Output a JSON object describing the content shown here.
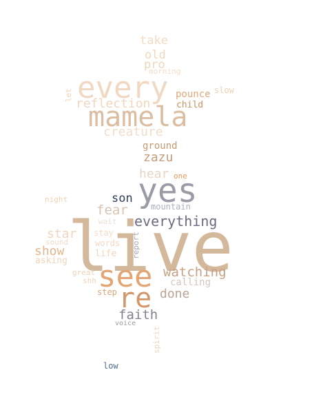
{
  "words": [
    {
      "text": "live",
      "color": "#d4b89c",
      "rotate": 0
    },
    {
      "text": "yes",
      "color": "#9a9ba6",
      "rotate": 0
    },
    {
      "text": "every",
      "color": "#f0d8c2",
      "rotate": 0
    },
    {
      "text": "mamela",
      "color": "#dbbda2",
      "rotate": 0
    },
    {
      "text": "see",
      "color": "#e3a574",
      "rotate": 0
    },
    {
      "text": "re",
      "color": "#d3976a",
      "rotate": 0
    },
    {
      "text": "everything",
      "color": "#6b6a80",
      "rotate": 0
    },
    {
      "text": "watching",
      "color": "#c7a184",
      "rotate": 0
    },
    {
      "text": "faith",
      "color": "#82808f",
      "rotate": 0
    },
    {
      "text": "son",
      "color": "#2e3b5a",
      "rotate": 0
    },
    {
      "text": "reflection",
      "color": "#f1d6bf",
      "rotate": 0
    },
    {
      "text": "creature",
      "color": "#f2ddc9",
      "rotate": 0
    },
    {
      "text": "zazu",
      "color": "#c59c7a",
      "rotate": 0
    },
    {
      "text": "hear",
      "color": "#e8d5c4",
      "rotate": 0
    },
    {
      "text": "fear",
      "color": "#d8c4b3",
      "rotate": 0
    },
    {
      "text": "star",
      "color": "#f0d6c0",
      "rotate": 0
    },
    {
      "text": "show",
      "color": "#e6b58c",
      "rotate": 0
    },
    {
      "text": "done",
      "color": "#b8a394",
      "rotate": 0
    },
    {
      "text": "take",
      "color": "#f3dcc4",
      "rotate": 0
    },
    {
      "text": "old",
      "color": "#f1d7be",
      "rotate": 0
    },
    {
      "text": "pro",
      "color": "#efd5bd",
      "rotate": 0
    },
    {
      "text": "pounce",
      "color": "#e2a978",
      "rotate": 0
    },
    {
      "text": "child",
      "color": "#c7925f",
      "rotate": 0
    },
    {
      "text": "ground",
      "color": "#c49a72",
      "rotate": 0
    },
    {
      "text": "calling",
      "color": "#d5c7bb",
      "rotate": 0
    },
    {
      "text": "slow",
      "color": "#f0d0b0",
      "rotate": 0
    },
    {
      "text": "morning",
      "color": "#f3dcc7",
      "rotate": 0
    },
    {
      "text": "let",
      "color": "#f0d1b5",
      "rotate": -90
    },
    {
      "text": "one",
      "color": "#e39a57",
      "rotate": 0
    },
    {
      "text": "night",
      "color": "#f0d1b3",
      "rotate": 0
    },
    {
      "text": "mountain",
      "color": "#a9b0bd",
      "rotate": 0
    },
    {
      "text": "wait",
      "color": "#ebe0d6",
      "rotate": 0
    },
    {
      "text": "stay",
      "color": "#f2dcc7",
      "rotate": 0
    },
    {
      "text": "sound",
      "color": "#f2dac7",
      "rotate": 0
    },
    {
      "text": "words",
      "color": "#f0d8c5",
      "rotate": 0
    },
    {
      "text": "report",
      "color": "#a3a6b4",
      "rotate": -90
    },
    {
      "text": "asking",
      "color": "#f0d4bc",
      "rotate": 0
    },
    {
      "text": "life",
      "color": "#f0d5bd",
      "rotate": 0
    },
    {
      "text": "great",
      "color": "#f0d2b8",
      "rotate": 0
    },
    {
      "text": "shh",
      "color": "#f0d4bc",
      "rotate": 0
    },
    {
      "text": "step",
      "color": "#d7a57c",
      "rotate": 0
    },
    {
      "text": "voice",
      "color": "#9b9ba3",
      "rotate": 0
    },
    {
      "text": "spirit",
      "color": "#f0d5bd",
      "rotate": -90
    },
    {
      "text": "low",
      "color": "#4f6f92",
      "rotate": 0
    }
  ]
}
